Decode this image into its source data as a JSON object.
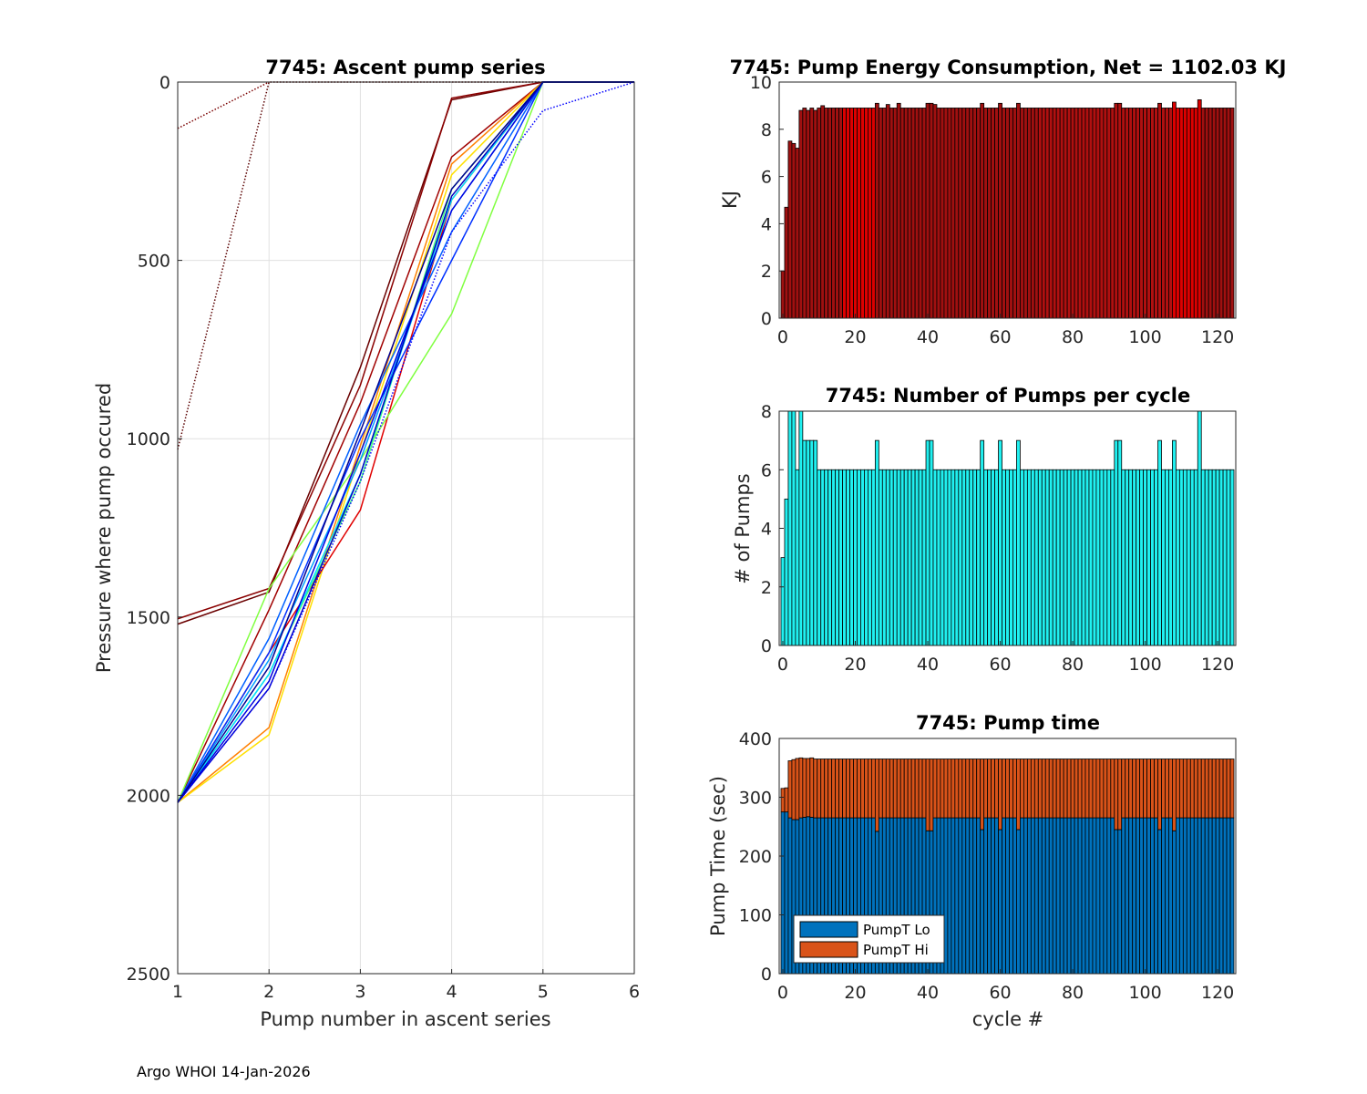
{
  "footer": "Argo WHOI 14-Jan-2026",
  "chart_data": [
    {
      "id": "ascent",
      "type": "line",
      "title": "7745: Ascent pump series",
      "xlabel": "Pump number in ascent series",
      "ylabel": "Pressure where pump occured",
      "xlim": [
        1,
        6
      ],
      "ylim": [
        0,
        2500
      ],
      "y_reversed": true,
      "grid": true,
      "xticks": [
        1,
        2,
        3,
        4,
        5,
        6
      ],
      "yticks": [
        0,
        500,
        1000,
        1500,
        2000,
        2500
      ],
      "series": [
        {
          "name": "early-1",
          "color": "#5a0000",
          "dotted": true,
          "x": [
            1,
            2,
            3,
            4,
            5,
            6
          ],
          "y": [
            1030,
            0,
            0,
            0,
            0,
            0
          ]
        },
        {
          "name": "early-2",
          "color": "#7a0000",
          "dotted": true,
          "x": [
            1,
            2
          ],
          "y": [
            130,
            0
          ]
        },
        {
          "name": "s3",
          "color": "#6a0000",
          "dotted": false,
          "x": [
            1,
            2,
            3,
            4,
            5,
            6
          ],
          "y": [
            1520,
            1430,
            800,
            50,
            0,
            0
          ]
        },
        {
          "name": "s4",
          "color": "#8a0000",
          "dotted": false,
          "x": [
            1,
            2,
            3,
            4,
            5,
            6
          ],
          "y": [
            1505,
            1420,
            850,
            45,
            0,
            0
          ]
        },
        {
          "name": "s5",
          "color": "#a00000",
          "dotted": false,
          "x": [
            1,
            2,
            3,
            4,
            5,
            6
          ],
          "y": [
            2020,
            1480,
            900,
            210,
            0,
            0
          ]
        },
        {
          "name": "s6",
          "color": "#ff8000",
          "dotted": false,
          "x": [
            1,
            2,
            3,
            4,
            5,
            6
          ],
          "y": [
            2020,
            1810,
            1020,
            230,
            0,
            0
          ]
        },
        {
          "name": "s7",
          "color": "#ffe000",
          "dotted": false,
          "x": [
            1,
            2,
            3,
            4,
            5,
            6
          ],
          "y": [
            2020,
            1830,
            1040,
            260,
            0,
            0
          ]
        },
        {
          "name": "s8",
          "color": "#e00000",
          "dotted": false,
          "x": [
            1,
            2,
            3,
            4,
            5,
            6
          ],
          "y": [
            2020,
            1600,
            1200,
            330,
            0,
            0
          ]
        },
        {
          "name": "s9",
          "color": "#80ff40",
          "dotted": false,
          "x": [
            1,
            2,
            3,
            4,
            5,
            6
          ],
          "y": [
            2020,
            1420,
            1060,
            650,
            0,
            0
          ]
        },
        {
          "name": "s10",
          "color": "#40ff80",
          "dotted": false,
          "x": [
            1,
            2,
            3,
            4,
            5,
            6
          ],
          "y": [
            2020,
            1660,
            1120,
            300,
            0,
            0
          ]
        },
        {
          "name": "s11",
          "color": "#00e0ff",
          "dotted": false,
          "x": [
            1,
            2,
            3,
            4,
            5,
            6
          ],
          "y": [
            2020,
            1660,
            1100,
            330,
            0,
            0
          ]
        },
        {
          "name": "s12",
          "color": "#00a0ff",
          "dotted": false,
          "x": [
            1,
            2,
            3,
            4,
            5,
            6
          ],
          "y": [
            2020,
            1620,
            1060,
            360,
            0,
            0
          ]
        },
        {
          "name": "s13",
          "color": "#0060ff",
          "dotted": false,
          "x": [
            1,
            2,
            3,
            4,
            5,
            6
          ],
          "y": [
            2020,
            1560,
            960,
            420,
            0,
            0
          ]
        },
        {
          "name": "s14",
          "color": "#0030ff",
          "dotted": false,
          "x": [
            1,
            2,
            3,
            4,
            5,
            6
          ],
          "y": [
            2020,
            1600,
            1000,
            500,
            0,
            0
          ]
        },
        {
          "name": "s15",
          "color": "#0000e0",
          "dotted": false,
          "x": [
            1,
            2,
            3,
            4,
            5,
            6
          ],
          "y": [
            2020,
            1680,
            1040,
            360,
            0,
            0
          ]
        },
        {
          "name": "s16",
          "color": "#0000c0",
          "dotted": false,
          "x": [
            1,
            2,
            3,
            4,
            5,
            6
          ],
          "y": [
            2020,
            1700,
            1100,
            320,
            0,
            0
          ]
        },
        {
          "name": "s17",
          "color": "#000090",
          "dotted": false,
          "x": [
            1,
            2,
            3,
            4,
            5,
            6
          ],
          "y": [
            2020,
            1640,
            980,
            300,
            0,
            0
          ]
        },
        {
          "name": "s18",
          "color": "#0000ff",
          "dotted": true,
          "x": [
            1,
            2,
            3,
            4,
            5,
            6
          ],
          "y": [
            2020,
            1700,
            1120,
            420,
            80,
            0
          ]
        }
      ]
    },
    {
      "id": "energy",
      "type": "bar",
      "title": "7745: Pump Energy Consumption,  Net = 1102.03 KJ",
      "xlabel": "",
      "ylabel": "KJ",
      "xlim": [
        -1,
        125
      ],
      "ylim": [
        0,
        10
      ],
      "xticks": [
        0,
        20,
        40,
        60,
        80,
        100,
        120
      ],
      "yticks": [
        0,
        2,
        4,
        6,
        8,
        10
      ],
      "base_value": 8.9,
      "first_values": [
        2.0,
        4.7,
        7.5,
        7.4,
        7.2,
        8.8,
        8.9,
        8.8,
        8.9,
        8.8,
        8.9,
        9.0
      ],
      "spikes": {
        "26": 9.1,
        "29": 9.05,
        "32": 9.1,
        "40": 9.1,
        "41": 9.1,
        "42": 9.05,
        "55": 9.1,
        "60": 9.1,
        "65": 9.1,
        "92": 9.1,
        "93": 9.1,
        "104": 9.1,
        "108": 9.15,
        "115": 9.25
      },
      "n": 125,
      "color_runs": [
        {
          "from": 0,
          "to": 16,
          "color": "#a01010"
        },
        {
          "from": 17,
          "to": 25,
          "color": "#dd0000"
        },
        {
          "from": 26,
          "to": 70,
          "color": "#a01010"
        },
        {
          "from": 71,
          "to": 107,
          "color": "#b01010"
        },
        {
          "from": 108,
          "to": 115,
          "color": "#dd0000"
        },
        {
          "from": 116,
          "to": 124,
          "color": "#a01010"
        }
      ]
    },
    {
      "id": "pumps",
      "type": "bar",
      "title": "7745: Number of Pumps per cycle",
      "xlabel": "",
      "ylabel": "# of Pumps",
      "xlim": [
        -1,
        125
      ],
      "ylim": [
        0,
        8
      ],
      "xticks": [
        0,
        20,
        40,
        60,
        80,
        100,
        120
      ],
      "yticks": [
        0,
        2,
        4,
        6,
        8
      ],
      "base_value": 6,
      "first_values": [
        3,
        5,
        8,
        8,
        6,
        8,
        7,
        7,
        7,
        7
      ],
      "spikes": {
        "26": 7,
        "40": 7,
        "41": 7,
        "55": 7,
        "60": 7,
        "65": 7,
        "92": 7,
        "93": 7,
        "104": 7,
        "108": 7,
        "115": 8
      },
      "n": 125,
      "color": "#20f0f0"
    },
    {
      "id": "pumptime",
      "type": "bar",
      "stacked": true,
      "title": "7745: Pump time",
      "xlabel": "cycle #",
      "ylabel": "Pump Time (sec)",
      "xlim": [
        -1,
        125
      ],
      "ylim": [
        0,
        400
      ],
      "xticks": [
        0,
        20,
        40,
        60,
        80,
        100,
        120
      ],
      "yticks": [
        0,
        100,
        200,
        300,
        400
      ],
      "n": 125,
      "lo_base": 265,
      "hi_total_base": 365,
      "first_lo": [
        275,
        275,
        265,
        262,
        262,
        265,
        266,
        267,
        266
      ],
      "first_total": [
        315,
        316,
        362,
        364,
        366,
        367,
        366,
        366,
        367
      ],
      "dips": {
        "26": 242,
        "40": 243,
        "41": 243,
        "55": 245,
        "60": 245,
        "65": 245,
        "92": 245,
        "93": 245,
        "104": 245,
        "108": 243
      },
      "legend": [
        {
          "label": "PumpT Lo",
          "color": "#0072bd"
        },
        {
          "label": "PumpT Hi",
          "color": "#d95319"
        }
      ]
    }
  ]
}
